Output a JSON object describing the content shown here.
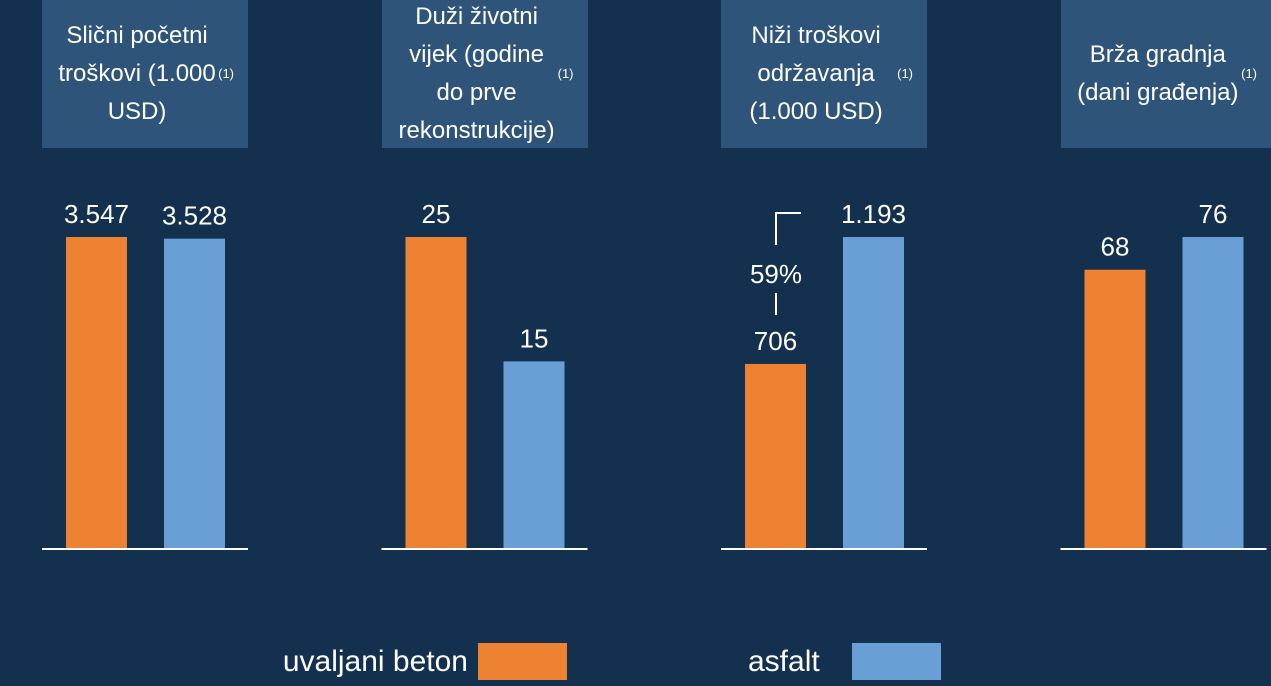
{
  "chart_data": [
    {
      "type": "bar",
      "title": "Slični početni troškovi (1.000 USD)",
      "title_note": "(1)",
      "series": [
        {
          "name": "uvaljani beton",
          "color": "#ec8232",
          "values": [
            3547
          ],
          "value_labels": [
            "3.547"
          ]
        },
        {
          "name": "asfalt",
          "color": "#6a9fd6",
          "values": [
            3528
          ],
          "value_labels": [
            "3.528"
          ]
        }
      ]
    },
    {
      "type": "bar",
      "title": "Duži životni vijek (godine do prve rekonstrukcije)",
      "title_note": "(1)",
      "series": [
        {
          "name": "uvaljani beton",
          "color": "#ec8232",
          "values": [
            25
          ]
        },
        {
          "name": "asfalt",
          "color": "#6a9fd6",
          "values": [
            15
          ]
        }
      ]
    },
    {
      "type": "bar",
      "title": "Niži troškovi održavanja (1.000 USD)",
      "title_note": "(1)",
      "annotation": "59%",
      "series": [
        {
          "name": "uvaljani beton",
          "color": "#ec8232",
          "values": [
            706
          ]
        },
        {
          "name": "asfalt",
          "color": "#6a9fd6",
          "values": [
            1193
          ],
          "value_labels": [
            "1.193"
          ]
        }
      ]
    },
    {
      "type": "bar",
      "title": "Brža gradnja (dani građenja)",
      "title_note": "(1)",
      "series": [
        {
          "name": "uvaljani beton",
          "color": "#ec8232",
          "values": [
            68
          ]
        },
        {
          "name": "asfalt",
          "color": "#6a9fd6",
          "values": [
            76
          ]
        }
      ]
    }
  ]
}
